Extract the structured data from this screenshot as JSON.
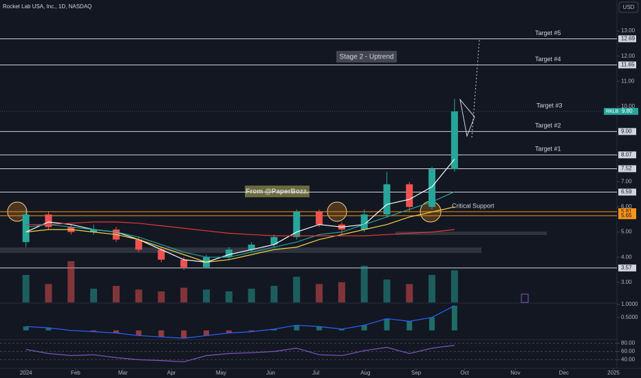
{
  "header": {
    "symbol_title": "Rocket Lab USA, Inc., 1D, NASDAQ",
    "currency": "USD"
  },
  "annotations": {
    "stage": "Stage 2 - Uptrend",
    "credit": "From @PaperBozz."
  },
  "chart_data": {
    "type": "candlestick",
    "x": [
      0,
      2,
      4,
      6,
      8,
      10,
      12,
      14,
      16,
      18,
      20,
      22,
      24,
      26,
      28,
      30,
      32,
      34,
      36,
      38
    ],
    "open": [
      4.6,
      5.7,
      5.2,
      5.0,
      5.1,
      4.7,
      4.3,
      3.9,
      3.6,
      4.0,
      4.3,
      4.5,
      4.8,
      5.8,
      5.3,
      5.1,
      5.7,
      6.9,
      6.0,
      7.5
    ],
    "high": [
      5.9,
      5.8,
      5.3,
      5.3,
      5.2,
      4.8,
      4.4,
      4.0,
      4.1,
      4.4,
      4.6,
      4.9,
      5.9,
      5.9,
      5.4,
      5.9,
      7.4,
      7.0,
      7.6,
      10.3
    ],
    "low": [
      4.4,
      5.1,
      4.9,
      4.9,
      4.6,
      4.2,
      3.8,
      3.5,
      3.6,
      3.9,
      4.2,
      4.4,
      4.7,
      5.2,
      4.9,
      5.0,
      5.6,
      5.8,
      5.9,
      7.4
    ],
    "close": [
      5.7,
      5.2,
      5.0,
      5.1,
      4.7,
      4.3,
      3.9,
      3.6,
      4.0,
      4.3,
      4.5,
      4.8,
      5.8,
      5.3,
      5.1,
      5.7,
      6.9,
      6.0,
      7.5,
      9.8
    ],
    "up_color": "#26a69a",
    "down_color": "#ef5350",
    "volume": [
      30,
      20,
      45,
      15,
      18,
      14,
      12,
      16,
      14,
      12,
      15,
      18,
      28,
      20,
      22,
      40,
      25,
      20,
      30,
      35
    ],
    "series": [
      {
        "color": "#ffffff",
        "values": [
          5.0,
          5.4,
          5.3,
          5.1,
          5.0,
          4.7,
          4.3,
          3.9,
          3.8,
          4.1,
          4.3,
          4.5,
          5.0,
          5.3,
          5.2,
          5.3,
          6.1,
          6.3,
          6.8,
          7.9
        ]
      },
      {
        "color": "#26a69a",
        "values": [
          5.2,
          5.3,
          5.2,
          5.1,
          5.0,
          4.8,
          4.5,
          4.2,
          4.0,
          4.0,
          4.2,
          4.4,
          4.6,
          4.9,
          5.0,
          5.3,
          5.6,
          5.9,
          6.2,
          6.6
        ]
      },
      {
        "color": "#f5d547",
        "values": [
          5.0,
          5.1,
          5.1,
          5.0,
          4.9,
          4.7,
          4.4,
          4.1,
          3.8,
          3.9,
          4.1,
          4.3,
          4.4,
          4.7,
          4.9,
          5.1,
          5.3,
          5.6,
          5.8,
          6.0
        ]
      },
      {
        "color": "#e53935",
        "values": [
          5.3,
          5.3,
          5.35,
          5.4,
          5.4,
          5.35,
          5.25,
          5.15,
          5.05,
          4.95,
          4.9,
          4.85,
          4.85,
          4.85,
          4.85,
          4.85,
          4.9,
          4.95,
          5.0,
          5.1
        ]
      }
    ],
    "xlim": [
      -2.3,
      52.4
    ],
    "xticks": [
      {
        "value": 0,
        "label": "2024"
      },
      {
        "value": 4.4,
        "label": "Feb"
      },
      {
        "value": 8.6,
        "label": "Mar"
      },
      {
        "value": 12.9,
        "label": "Apr"
      },
      {
        "value": 17.3,
        "label": "May"
      },
      {
        "value": 21.7,
        "label": "Jun"
      },
      {
        "value": 25.7,
        "label": "Jul"
      },
      {
        "value": 30.1,
        "label": "Aug"
      },
      {
        "value": 34.6,
        "label": "Sep"
      },
      {
        "value": 38.9,
        "label": "Oct"
      },
      {
        "value": 43.4,
        "label": "Nov"
      },
      {
        "value": 47.7,
        "label": "Dec"
      },
      {
        "value": 52.1,
        "label": "2025"
      }
    ],
    "ylim": [
      2.2,
      13.55
    ],
    "yticks": [
      {
        "value": 3,
        "label": "3.00"
      },
      {
        "value": 4,
        "label": "4.00"
      },
      {
        "value": 5,
        "label": "5.00"
      },
      {
        "value": 6,
        "label": "6.00"
      },
      {
        "value": 7,
        "label": "7.00"
      },
      {
        "value": 10,
        "label": "10.00"
      },
      {
        "value": 11,
        "label": "11.00"
      },
      {
        "value": 12,
        "label": "12.00"
      },
      {
        "value": 13,
        "label": "13.00"
      }
    ],
    "levels": [
      {
        "value": 12.69,
        "label": "12.69",
        "note": "Target #5",
        "color": "#d1d4dc"
      },
      {
        "value": 11.65,
        "label": "11.65",
        "note": "Target #4",
        "color": "#d1d4dc"
      },
      {
        "value": 9,
        "label": "9.00",
        "note": "Target #2",
        "color": "#d1d4dc"
      },
      {
        "value": 8.07,
        "label": "8.07",
        "note": "Target #1",
        "color": "#d1d4dc"
      },
      {
        "value": 7.52,
        "label": "7.52",
        "color": "#d1d4dc"
      },
      {
        "value": 6.59,
        "label": "6.59",
        "color": "#d1d4dc"
      },
      {
        "value": 5.81,
        "label": "5.81",
        "note": "Critical Support",
        "color": "#f7931a"
      },
      {
        "value": 5.65,
        "label": "5.65",
        "color": "#f7931a"
      },
      {
        "value": 3.57,
        "label": "3.57",
        "color": "#d1d4dc"
      }
    ],
    "last": {
      "symbol": "RKLB",
      "value": 9.8,
      "label": "9.80",
      "note": "Target #3",
      "color": "#26a69a"
    },
    "macd": {
      "color": "#2962ff",
      "values": [
        0.15,
        0.1,
        0,
        -0.05,
        -0.1,
        -0.2,
        -0.25,
        -0.3,
        -0.2,
        -0.1,
        -0.05,
        0.05,
        0.2,
        0.15,
        0.05,
        0.2,
        0.45,
        0.35,
        0.5,
        0.95
      ],
      "ylim": [
        -0.35,
        1.05
      ],
      "yticks": [
        {
          "value": 1,
          "label": "1.0000"
        },
        {
          "value": 0.5,
          "label": "0.5000"
        }
      ]
    },
    "rsi": {
      "color": "#7e57c2",
      "values": [
        65,
        55,
        50,
        52,
        45,
        40,
        38,
        35,
        50,
        55,
        57,
        60,
        68,
        52,
        50,
        62,
        70,
        55,
        68,
        75
      ],
      "ylim": [
        19,
        89
      ],
      "yticks": [
        {
          "value": 80,
          "label": "80.00"
        },
        {
          "value": 60,
          "label": "60.00"
        },
        {
          "value": 40,
          "label": "40.00"
        }
      ]
    }
  }
}
